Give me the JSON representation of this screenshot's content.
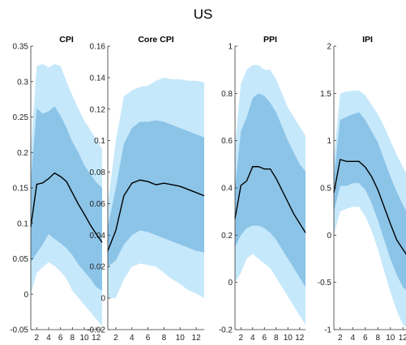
{
  "figure_title": "US",
  "colors": {
    "outer_band": "#c6e8fb",
    "inner_band": "#8cc4e8",
    "line": "#000000",
    "axis": "#333333"
  },
  "chart_data": [
    {
      "type": "area",
      "title": "CPI",
      "xlabel": "",
      "ylabel": "",
      "ylim": [
        -0.05,
        0.35
      ],
      "yticks": [
        -0.05,
        0,
        0.05,
        0.1,
        0.15,
        0.2,
        0.25,
        0.3,
        0.35
      ],
      "ytick_labels": [
        "-0.05",
        "0",
        "0.05",
        "0.1",
        "0.15",
        "0.2",
        "0.25",
        "0.3",
        "0.35"
      ],
      "xlim": [
        1,
        13
      ],
      "xticks": [
        2,
        4,
        6,
        8,
        10,
        12
      ],
      "xtick_labels": [
        "2",
        "4",
        "6",
        "8",
        "10",
        "12"
      ],
      "grid": false,
      "x": [
        1,
        2,
        3,
        4,
        5,
        6,
        7,
        8,
        9,
        10,
        11,
        12,
        13
      ],
      "series": [
        {
          "values": [
            0.095,
            0.155,
            0.157,
            0.163,
            0.171,
            0.166,
            0.159,
            0.143,
            0.127,
            0.113,
            0.098,
            0.085,
            0.073
          ]
        }
      ],
      "bands": [
        {
          "lower": [
            0.0,
            0.03,
            0.038,
            0.045,
            0.04,
            0.032,
            0.022,
            0.005,
            -0.005,
            -0.015,
            -0.025,
            -0.035,
            -0.045
          ],
          "upper": [
            0.2,
            0.322,
            0.325,
            0.32,
            0.325,
            0.322,
            0.3,
            0.28,
            0.262,
            0.245,
            0.232,
            0.218,
            0.205
          ]
        },
        {
          "lower": [
            0.045,
            0.058,
            0.07,
            0.085,
            0.078,
            0.072,
            0.065,
            0.055,
            0.042,
            0.032,
            0.022,
            0.01,
            0.005
          ],
          "upper": [
            0.16,
            0.262,
            0.255,
            0.258,
            0.265,
            0.252,
            0.235,
            0.215,
            0.2,
            0.182,
            0.17,
            0.158,
            0.15
          ]
        }
      ]
    },
    {
      "type": "area",
      "title": "Core CPI",
      "xlabel": "",
      "ylabel": "",
      "ylim": [
        -0.02,
        0.16
      ],
      "yticks": [
        -0.02,
        0,
        0.02,
        0.04,
        0.06,
        0.08,
        0.1,
        0.12,
        0.14,
        0.16
      ],
      "ytick_labels": [
        "-0.02",
        "0",
        "0.02",
        "0.04",
        "0.06",
        "0.08",
        "0.1",
        "0.12",
        "0.14",
        "0.16"
      ],
      "xlim": [
        1,
        13
      ],
      "xticks": [
        2,
        4,
        6,
        8,
        10,
        12
      ],
      "xtick_labels": [
        "2",
        "4",
        "6",
        "8",
        "10",
        "12"
      ],
      "grid": false,
      "x": [
        1,
        2,
        3,
        4,
        5,
        6,
        7,
        8,
        9,
        10,
        11,
        12,
        13
      ],
      "series": [
        {
          "values": [
            0.03,
            0.043,
            0.065,
            0.073,
            0.075,
            0.074,
            0.072,
            0.073,
            0.072,
            0.071,
            0.069,
            0.067,
            0.065
          ]
        }
      ],
      "bands": [
        {
          "lower": [
            0.0,
            0.0,
            0.012,
            0.02,
            0.022,
            0.021,
            0.02,
            0.016,
            0.012,
            0.009,
            0.005,
            0.003,
            0.0
          ],
          "upper": [
            0.06,
            0.1,
            0.128,
            0.132,
            0.134,
            0.135,
            0.138,
            0.14,
            0.139,
            0.139,
            0.138,
            0.138,
            0.137
          ]
        },
        {
          "lower": [
            0.02,
            0.024,
            0.034,
            0.04,
            0.043,
            0.042,
            0.04,
            0.038,
            0.036,
            0.034,
            0.032,
            0.03,
            0.029
          ],
          "upper": [
            0.045,
            0.07,
            0.098,
            0.108,
            0.112,
            0.112,
            0.113,
            0.112,
            0.11,
            0.108,
            0.106,
            0.104,
            0.102
          ]
        }
      ]
    },
    {
      "type": "area",
      "title": "PPI",
      "xlabel": "",
      "ylabel": "",
      "ylim": [
        -0.2,
        1.0
      ],
      "yticks": [
        -0.2,
        0,
        0.2,
        0.4,
        0.6,
        0.8,
        1.0
      ],
      "ytick_labels": [
        "-0.2",
        "0",
        "0.2",
        "0.4",
        "0.6",
        "0.8",
        "1"
      ],
      "xlim": [
        1,
        13
      ],
      "xticks": [
        2,
        4,
        6,
        8,
        10,
        12
      ],
      "xtick_labels": [
        "2",
        "4",
        "6",
        "8",
        "10",
        "12"
      ],
      "grid": false,
      "x": [
        1,
        2,
        3,
        4,
        5,
        6,
        7,
        8,
        9,
        10,
        11,
        12,
        13
      ],
      "series": [
        {
          "values": [
            0.27,
            0.41,
            0.43,
            0.49,
            0.49,
            0.48,
            0.48,
            0.44,
            0.39,
            0.34,
            0.29,
            0.25,
            0.21
          ]
        }
      ],
      "bands": [
        {
          "lower": [
            0.0,
            0.04,
            0.1,
            0.12,
            0.1,
            0.08,
            0.06,
            0.02,
            -0.02,
            -0.06,
            -0.1,
            -0.14,
            -0.18
          ],
          "upper": [
            0.58,
            0.84,
            0.9,
            0.92,
            0.92,
            0.9,
            0.9,
            0.86,
            0.8,
            0.74,
            0.7,
            0.66,
            0.62
          ]
        },
        {
          "lower": [
            0.15,
            0.2,
            0.23,
            0.24,
            0.24,
            0.23,
            0.21,
            0.18,
            0.14,
            0.1,
            0.06,
            0.02,
            -0.02
          ],
          "upper": [
            0.4,
            0.64,
            0.7,
            0.78,
            0.8,
            0.79,
            0.76,
            0.72,
            0.66,
            0.6,
            0.55,
            0.5,
            0.47
          ]
        }
      ]
    },
    {
      "type": "area",
      "title": "IPI",
      "xlabel": "",
      "ylabel": "",
      "ylim": [
        -1,
        2
      ],
      "yticks": [
        -1,
        -0.5,
        0,
        0.5,
        1,
        1.5,
        2
      ],
      "ytick_labels": [
        "-1",
        "-0.5",
        "0",
        "0.5",
        "1",
        "1.5",
        "2"
      ],
      "xlim": [
        1,
        13
      ],
      "xticks": [
        2,
        4,
        6,
        8,
        10,
        12
      ],
      "xtick_labels": [
        "2",
        "4",
        "6",
        "8",
        "10",
        "12"
      ],
      "grid": false,
      "x": [
        1,
        2,
        3,
        4,
        5,
        6,
        7,
        8,
        9,
        10,
        11,
        12,
        13
      ],
      "series": [
        {
          "values": [
            0.45,
            0.8,
            0.78,
            0.78,
            0.78,
            0.72,
            0.62,
            0.48,
            0.3,
            0.12,
            -0.05,
            -0.15,
            -0.25
          ]
        }
      ],
      "bands": [
        {
          "lower": [
            0.0,
            0.25,
            0.28,
            0.3,
            0.3,
            0.2,
            0.05,
            -0.15,
            -0.38,
            -0.6,
            -0.8,
            -0.95,
            -1.0
          ],
          "upper": [
            0.8,
            1.5,
            1.52,
            1.53,
            1.53,
            1.48,
            1.38,
            1.28,
            1.15,
            1.0,
            0.85,
            0.72,
            0.6
          ]
        },
        {
          "lower": [
            0.25,
            0.52,
            0.52,
            0.55,
            0.55,
            0.48,
            0.34,
            0.16,
            -0.05,
            -0.25,
            -0.42,
            -0.55,
            -0.62
          ],
          "upper": [
            0.62,
            1.22,
            1.25,
            1.28,
            1.3,
            1.22,
            1.1,
            0.98,
            0.8,
            0.62,
            0.46,
            0.32,
            0.2
          ]
        }
      ]
    }
  ]
}
